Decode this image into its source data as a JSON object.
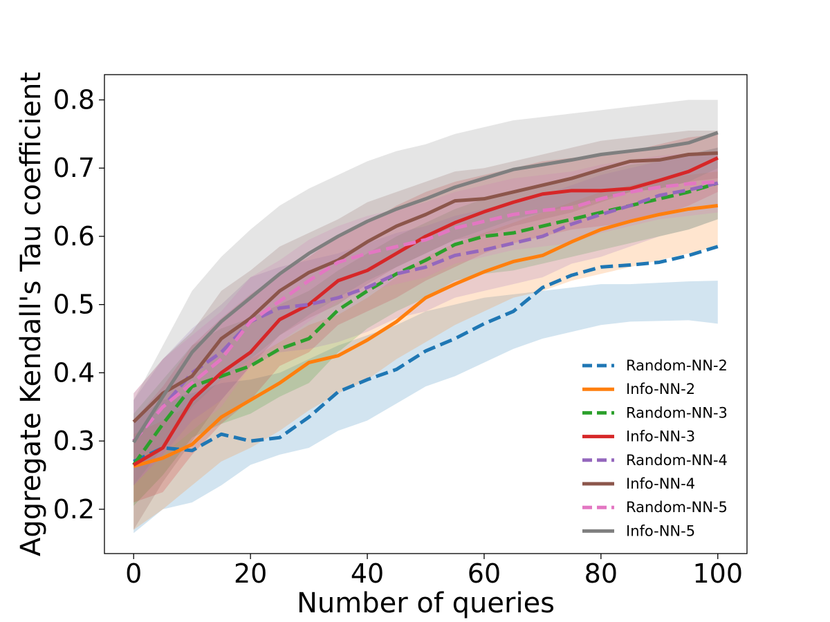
{
  "chart_data": {
    "type": "line",
    "xlabel": "Number of queries",
    "ylabel": "Aggregate Kendall's Tau coefficient",
    "xlim": [
      -5,
      105
    ],
    "ylim": [
      0.135,
      0.837
    ],
    "xticks": [
      0,
      20,
      40,
      60,
      80,
      100
    ],
    "yticks": [
      0.2,
      0.3,
      0.4,
      0.5,
      0.6,
      0.7,
      0.8
    ],
    "grid": false,
    "legend_position": "lower-right",
    "x": [
      0,
      5,
      10,
      15,
      20,
      25,
      30,
      35,
      40,
      45,
      50,
      55,
      60,
      65,
      70,
      75,
      80,
      85,
      90,
      95,
      100
    ],
    "series": [
      {
        "name": "Random-NN-2",
        "color": "#1f77b4",
        "dashed": true,
        "values": [
          0.27,
          0.29,
          0.286,
          0.31,
          0.3,
          0.305,
          0.335,
          0.372,
          0.39,
          0.405,
          0.432,
          0.45,
          0.472,
          0.49,
          0.525,
          0.543,
          0.555,
          0.558,
          0.562,
          0.572,
          0.585
        ],
        "upper": [
          0.33,
          0.36,
          0.37,
          0.385,
          0.39,
          0.4,
          0.42,
          0.44,
          0.455,
          0.47,
          0.49,
          0.5,
          0.51,
          0.515,
          0.52,
          0.525,
          0.53,
          0.53,
          0.532,
          0.534,
          0.535
        ],
        "lower": [
          0.165,
          0.2,
          0.21,
          0.235,
          0.265,
          0.28,
          0.29,
          0.315,
          0.33,
          0.355,
          0.38,
          0.395,
          0.415,
          0.435,
          0.45,
          0.46,
          0.47,
          0.475,
          0.476,
          0.477,
          0.472
        ]
      },
      {
        "name": "Info-NN-2",
        "color": "#ff7f0e",
        "dashed": false,
        "values": [
          0.263,
          0.275,
          0.295,
          0.335,
          0.36,
          0.385,
          0.415,
          0.425,
          0.448,
          0.475,
          0.51,
          0.53,
          0.548,
          0.563,
          0.572,
          0.592,
          0.61,
          0.622,
          0.632,
          0.64,
          0.645
        ],
        "upper": [
          0.31,
          0.33,
          0.355,
          0.39,
          0.42,
          0.445,
          0.47,
          0.485,
          0.51,
          0.54,
          0.57,
          0.59,
          0.605,
          0.62,
          0.635,
          0.65,
          0.665,
          0.675,
          0.685,
          0.69,
          0.695
        ],
        "lower": [
          0.17,
          0.2,
          0.235,
          0.27,
          0.29,
          0.315,
          0.345,
          0.37,
          0.39,
          0.42,
          0.445,
          0.47,
          0.49,
          0.51,
          0.52,
          0.535,
          0.545,
          0.555,
          0.565,
          0.575,
          0.585
        ]
      },
      {
        "name": "Random-NN-3",
        "color": "#2ca02c",
        "dashed": true,
        "values": [
          0.265,
          0.325,
          0.38,
          0.395,
          0.41,
          0.435,
          0.45,
          0.492,
          0.52,
          0.545,
          0.565,
          0.588,
          0.6,
          0.605,
          0.615,
          0.625,
          0.635,
          0.645,
          0.655,
          0.665,
          0.678
        ],
        "upper": [
          0.34,
          0.39,
          0.44,
          0.465,
          0.48,
          0.5,
          0.52,
          0.55,
          0.575,
          0.6,
          0.62,
          0.64,
          0.655,
          0.665,
          0.675,
          0.685,
          0.695,
          0.705,
          0.71,
          0.72,
          0.73
        ],
        "lower": [
          0.205,
          0.25,
          0.305,
          0.325,
          0.34,
          0.365,
          0.385,
          0.43,
          0.465,
          0.49,
          0.51,
          0.535,
          0.545,
          0.55,
          0.56,
          0.57,
          0.58,
          0.59,
          0.6,
          0.61,
          0.625
        ]
      },
      {
        "name": "Info-NN-3",
        "color": "#d62728",
        "dashed": false,
        "values": [
          0.265,
          0.29,
          0.36,
          0.4,
          0.43,
          0.478,
          0.5,
          0.535,
          0.55,
          0.575,
          0.6,
          0.62,
          0.636,
          0.65,
          0.662,
          0.667,
          0.667,
          0.67,
          0.682,
          0.695,
          0.715
        ],
        "upper": [
          0.33,
          0.38,
          0.44,
          0.48,
          0.515,
          0.545,
          0.57,
          0.6,
          0.62,
          0.645,
          0.665,
          0.68,
          0.69,
          0.7,
          0.71,
          0.715,
          0.72,
          0.725,
          0.735,
          0.745,
          0.75
        ],
        "lower": [
          0.21,
          0.225,
          0.28,
          0.325,
          0.36,
          0.41,
          0.43,
          0.47,
          0.49,
          0.51,
          0.535,
          0.555,
          0.575,
          0.59,
          0.6,
          0.61,
          0.615,
          0.62,
          0.63,
          0.645,
          0.665
        ]
      },
      {
        "name": "Random-NN-4",
        "color": "#9467bd",
        "dashed": true,
        "values": [
          0.3,
          0.35,
          0.4,
          0.43,
          0.475,
          0.495,
          0.5,
          0.51,
          0.525,
          0.545,
          0.555,
          0.572,
          0.58,
          0.59,
          0.6,
          0.618,
          0.632,
          0.645,
          0.66,
          0.668,
          0.678
        ],
        "upper": [
          0.36,
          0.42,
          0.465,
          0.5,
          0.54,
          0.555,
          0.565,
          0.575,
          0.59,
          0.605,
          0.615,
          0.63,
          0.64,
          0.65,
          0.66,
          0.675,
          0.69,
          0.7,
          0.71,
          0.72,
          0.73
        ],
        "lower": [
          0.235,
          0.28,
          0.33,
          0.36,
          0.41,
          0.43,
          0.435,
          0.445,
          0.46,
          0.48,
          0.49,
          0.51,
          0.52,
          0.53,
          0.54,
          0.56,
          0.57,
          0.585,
          0.6,
          0.61,
          0.625
        ]
      },
      {
        "name": "Info-NN-4",
        "color": "#8c564b",
        "dashed": false,
        "values": [
          0.328,
          0.37,
          0.395,
          0.45,
          0.48,
          0.52,
          0.547,
          0.565,
          0.592,
          0.615,
          0.632,
          0.652,
          0.655,
          0.665,
          0.675,
          0.685,
          0.698,
          0.71,
          0.712,
          0.72,
          0.722
        ],
        "upper": [
          0.37,
          0.42,
          0.46,
          0.52,
          0.55,
          0.585,
          0.605,
          0.625,
          0.65,
          0.665,
          0.68,
          0.695,
          0.7,
          0.71,
          0.72,
          0.73,
          0.74,
          0.745,
          0.75,
          0.755,
          0.755
        ],
        "lower": [
          0.17,
          0.24,
          0.3,
          0.36,
          0.41,
          0.455,
          0.48,
          0.5,
          0.53,
          0.555,
          0.575,
          0.595,
          0.6,
          0.615,
          0.625,
          0.635,
          0.65,
          0.665,
          0.67,
          0.68,
          0.685
        ]
      },
      {
        "name": "Random-NN-5",
        "color": "#e377c2",
        "dashed": true,
        "values": [
          0.3,
          0.35,
          0.385,
          0.42,
          0.475,
          0.505,
          0.535,
          0.562,
          0.575,
          0.585,
          0.595,
          0.612,
          0.622,
          0.632,
          0.638,
          0.642,
          0.655,
          0.665,
          0.672,
          0.677,
          0.68
        ],
        "upper": [
          0.37,
          0.42,
          0.455,
          0.49,
          0.54,
          0.565,
          0.595,
          0.615,
          0.63,
          0.64,
          0.65,
          0.665,
          0.675,
          0.685,
          0.69,
          0.695,
          0.705,
          0.712,
          0.718,
          0.722,
          0.725
        ],
        "lower": [
          0.235,
          0.28,
          0.315,
          0.35,
          0.41,
          0.445,
          0.475,
          0.505,
          0.52,
          0.53,
          0.54,
          0.56,
          0.57,
          0.58,
          0.585,
          0.59,
          0.605,
          0.615,
          0.625,
          0.63,
          0.635
        ]
      },
      {
        "name": "Info-NN-5",
        "color": "#7f7f7f",
        "dashed": false,
        "values": [
          0.298,
          0.365,
          0.43,
          0.475,
          0.51,
          0.545,
          0.575,
          0.6,
          0.622,
          0.64,
          0.655,
          0.672,
          0.685,
          0.698,
          0.705,
          0.712,
          0.72,
          0.725,
          0.73,
          0.737,
          0.752
        ],
        "upper": [
          0.36,
          0.44,
          0.52,
          0.57,
          0.61,
          0.645,
          0.67,
          0.69,
          0.71,
          0.725,
          0.735,
          0.75,
          0.76,
          0.77,
          0.775,
          0.78,
          0.785,
          0.79,
          0.795,
          0.8,
          0.8
        ],
        "lower": [
          0.235,
          0.29,
          0.35,
          0.39,
          0.42,
          0.455,
          0.485,
          0.51,
          0.535,
          0.555,
          0.575,
          0.595,
          0.61,
          0.625,
          0.635,
          0.645,
          0.655,
          0.665,
          0.67,
          0.68,
          0.7
        ]
      }
    ]
  }
}
